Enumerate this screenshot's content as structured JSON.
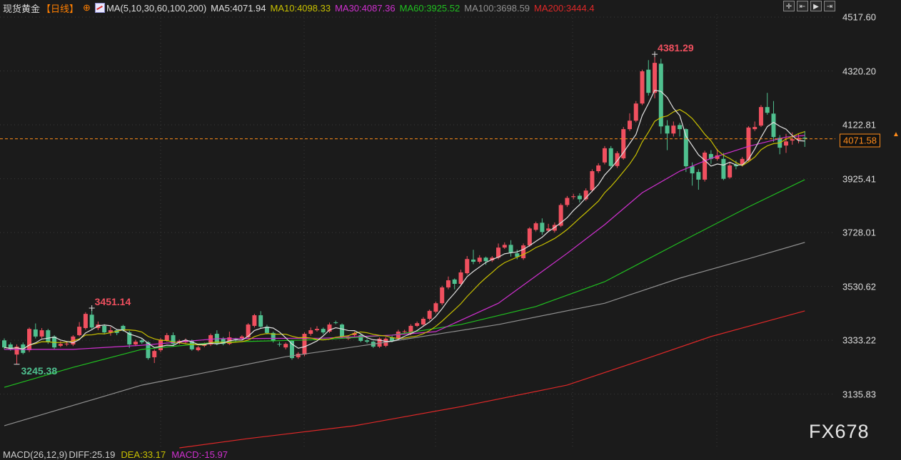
{
  "header": {
    "instrument": "现货黄金",
    "period": "【日线】",
    "ma_params": "MA(5,10,30,60,100,200)",
    "ma5": "MA5:4071.94",
    "ma10": "MA10:4098.33",
    "ma30": "MA30:4087.36",
    "ma60": "MA60:3925.52",
    "ma100": "MA100:3698.59",
    "ma200": "MA200:3444.4"
  },
  "macd": {
    "params": "MACD(26,12,9)",
    "diff": "DIFF:25.19",
    "dea": "DEA:33.17",
    "macd": "MACD:-15.97"
  },
  "current_price": "4071.58",
  "watermark": "FX678",
  "colors": {
    "up": "#f0505f",
    "down": "#4fc08f",
    "ma5": "#e0e0e0",
    "ma10": "#c8c000",
    "ma30": "#d030d0",
    "ma60": "#20c020",
    "ma100": "#909090",
    "ma200": "#e02828",
    "price_line": "#ff8c1a"
  },
  "chart_data": {
    "type": "candlestick",
    "ylim": [
      3010,
      4560
    ],
    "y_ticks": [
      "4517.60",
      "4320.20",
      "4122.81",
      "3925.41",
      "3728.01",
      "3530.62",
      "3333.22",
      "3135.83"
    ],
    "grid": true,
    "annotations": [
      {
        "text": "4381.29",
        "bar": 104,
        "value": 4381.29,
        "kind": "high"
      },
      {
        "text": "3451.14",
        "bar": 14,
        "value": 3451.14,
        "kind": "high"
      },
      {
        "text": "3245.38",
        "bar": 2,
        "value": 3245.38,
        "kind": "low"
      }
    ],
    "ohlc": [
      [
        3333,
        3340,
        3300,
        3307
      ],
      [
        3318,
        3325,
        3295,
        3300
      ],
      [
        3281,
        3318,
        3245.38,
        3310
      ],
      [
        3318,
        3325,
        3282,
        3287
      ],
      [
        3297,
        3380,
        3290,
        3375
      ],
      [
        3373,
        3395,
        3340,
        3347
      ],
      [
        3347,
        3378,
        3340,
        3370
      ],
      [
        3370,
        3375,
        3320,
        3326
      ],
      [
        3347,
        3352,
        3300,
        3307
      ],
      [
        3313,
        3330,
        3308,
        3320
      ],
      [
        3320,
        3328,
        3312,
        3321
      ],
      [
        3318,
        3352,
        3312,
        3347
      ],
      [
        3352,
        3400,
        3348,
        3383
      ],
      [
        3378,
        3436,
        3372,
        3430
      ],
      [
        3427,
        3451.14,
        3375,
        3380
      ],
      [
        3378,
        3402,
        3370,
        3391
      ],
      [
        3386,
        3392,
        3355,
        3362
      ],
      [
        3362,
        3382,
        3350,
        3370
      ],
      [
        3370,
        3375,
        3352,
        3360
      ],
      [
        3386,
        3390,
        3365,
        3370
      ],
      [
        3362,
        3368,
        3305,
        3318
      ],
      [
        3318,
        3335,
        3312,
        3328
      ],
      [
        3333,
        3338,
        3320,
        3326
      ],
      [
        3326,
        3330,
        3262,
        3268
      ],
      [
        3271,
        3300,
        3250,
        3294
      ],
      [
        3297,
        3342,
        3290,
        3336
      ],
      [
        3333,
        3360,
        3328,
        3352
      ],
      [
        3352,
        3362,
        3315,
        3320
      ],
      [
        3323,
        3336,
        3318,
        3331
      ],
      [
        3326,
        3340,
        3320,
        3333
      ],
      [
        3331,
        3336,
        3295,
        3300
      ],
      [
        3297,
        3312,
        3293,
        3307
      ],
      [
        3313,
        3325,
        3308,
        3320
      ],
      [
        3318,
        3358,
        3312,
        3352
      ],
      [
        3357,
        3370,
        3315,
        3320
      ],
      [
        3339,
        3345,
        3315,
        3320
      ],
      [
        3320,
        3365,
        3316,
        3344
      ],
      [
        3339,
        3342,
        3325,
        3338
      ],
      [
        3341,
        3352,
        3336,
        3347
      ],
      [
        3344,
        3396,
        3340,
        3391
      ],
      [
        3386,
        3430,
        3380,
        3425
      ],
      [
        3425,
        3440,
        3378,
        3383
      ],
      [
        3383,
        3390,
        3355,
        3360
      ],
      [
        3360,
        3365,
        3325,
        3331
      ],
      [
        3320,
        3328,
        3310,
        3318
      ],
      [
        3307,
        3325,
        3300,
        3320
      ],
      [
        3331,
        3335,
        3262,
        3268
      ],
      [
        3271,
        3290,
        3265,
        3284
      ],
      [
        3281,
        3362,
        3275,
        3357
      ],
      [
        3357,
        3380,
        3350,
        3370
      ],
      [
        3370,
        3385,
        3365,
        3375
      ],
      [
        3375,
        3380,
        3355,
        3362
      ],
      [
        3365,
        3398,
        3360,
        3391
      ],
      [
        3399,
        3405,
        3392,
        3398
      ],
      [
        3391,
        3395,
        3340,
        3347
      ],
      [
        3339,
        3352,
        3334,
        3347
      ],
      [
        3352,
        3365,
        3348,
        3360
      ],
      [
        3352,
        3358,
        3326,
        3331
      ],
      [
        3333,
        3338,
        3322,
        3328
      ],
      [
        3328,
        3332,
        3305,
        3310
      ],
      [
        3310,
        3344,
        3305,
        3339
      ],
      [
        3313,
        3345,
        3308,
        3339
      ],
      [
        3344,
        3350,
        3326,
        3331
      ],
      [
        3339,
        3372,
        3334,
        3365
      ],
      [
        3365,
        3372,
        3358,
        3366
      ],
      [
        3357,
        3392,
        3352,
        3386
      ],
      [
        3386,
        3402,
        3382,
        3396
      ],
      [
        3391,
        3418,
        3386,
        3412
      ],
      [
        3412,
        3446,
        3406,
        3441
      ],
      [
        3438,
        3475,
        3432,
        3469
      ],
      [
        3469,
        3533,
        3462,
        3527
      ],
      [
        3527,
        3567,
        3520,
        3553
      ],
      [
        3556,
        3560,
        3520,
        3540
      ],
      [
        3540,
        3592,
        3535,
        3582
      ],
      [
        3579,
        3642,
        3573,
        3631
      ],
      [
        3629,
        3665,
        3612,
        3621
      ],
      [
        3621,
        3645,
        3614,
        3636
      ],
      [
        3636,
        3640,
        3610,
        3623
      ],
      [
        3626,
        3642,
        3620,
        3636
      ],
      [
        3636,
        3688,
        3630,
        3673
      ],
      [
        3673,
        3692,
        3668,
        3683
      ],
      [
        3683,
        3700,
        3640,
        3655
      ],
      [
        3652,
        3665,
        3630,
        3639
      ],
      [
        3634,
        3688,
        3628,
        3681
      ],
      [
        3681,
        3748,
        3676,
        3743
      ],
      [
        3738,
        3768,
        3732,
        3762
      ],
      [
        3764,
        3780,
        3720,
        3730
      ],
      [
        3735,
        3760,
        3730,
        3743
      ],
      [
        3735,
        3765,
        3728,
        3756
      ],
      [
        3753,
        3835,
        3748,
        3829
      ],
      [
        3829,
        3862,
        3822,
        3855
      ],
      [
        3858,
        3870,
        3850,
        3861
      ],
      [
        3863,
        3872,
        3838,
        3850
      ],
      [
        3850,
        3890,
        3844,
        3882
      ],
      [
        3883,
        3960,
        3876,
        3953
      ],
      [
        3953,
        3982,
        3946,
        3974
      ],
      [
        3985,
        4045,
        3978,
        4037
      ],
      [
        4037,
        4045,
        3965,
        3972
      ],
      [
        3972,
        4026,
        3965,
        4019
      ],
      [
        4000,
        4115,
        3995,
        4107
      ],
      [
        4107,
        4165,
        4100,
        4138
      ],
      [
        4138,
        4210,
        4132,
        4201
      ],
      [
        4201,
        4325,
        4195,
        4319
      ],
      [
        4325,
        4360,
        4230,
        4240
      ],
      [
        4240,
        4381.29,
        4220,
        4350
      ],
      [
        4347,
        4365,
        4090,
        4117
      ],
      [
        4120,
        4140,
        4030,
        4091
      ],
      [
        4091,
        4135,
        4080,
        4120
      ],
      [
        4122,
        4130,
        4080,
        4107
      ],
      [
        4107,
        4110,
        3950,
        3971
      ],
      [
        3971,
        3985,
        3900,
        3945
      ],
      [
        3950,
        3960,
        3885,
        3922
      ],
      [
        3922,
        4028,
        3915,
        4021
      ],
      [
        4016,
        4030,
        3980,
        3998
      ],
      [
        3998,
        4035,
        3992,
        4011
      ],
      [
        3998,
        4020,
        3920,
        3925
      ],
      [
        3930,
        3985,
        3925,
        3974
      ],
      [
        3976,
        3992,
        3960,
        3971
      ],
      [
        3976,
        4005,
        3970,
        3998
      ],
      [
        3993,
        4118,
        3988,
        4113
      ],
      [
        4107,
        4135,
        4100,
        4115
      ],
      [
        4120,
        4195,
        4115,
        4188
      ],
      [
        4188,
        4240,
        4160,
        4167
      ],
      [
        4164,
        4210,
        4060,
        4078
      ],
      [
        4075,
        4085,
        4015,
        4039
      ],
      [
        4047,
        4090,
        4020,
        4062
      ],
      [
        4065,
        4095,
        4050,
        4070
      ],
      [
        4068,
        4090,
        4055,
        4075
      ],
      [
        4076,
        4100,
        4042,
        4071.58
      ]
    ],
    "moving_averages": {
      "ma30": [
        [
          0,
          3300
        ],
        [
          11,
          3300
        ],
        [
          22,
          3315
        ],
        [
          34,
          3339
        ],
        [
          51,
          3341
        ],
        [
          62,
          3352
        ],
        [
          69,
          3365
        ],
        [
          79,
          3469
        ],
        [
          90,
          3652
        ],
        [
          96,
          3757
        ],
        [
          102,
          3874
        ],
        [
          108,
          3953
        ],
        [
          113,
          4000
        ],
        [
          119,
          4044
        ],
        [
          125,
          4078
        ],
        [
          128,
          4084
        ]
      ],
      "ma60": [
        [
          0,
          3161
        ],
        [
          11,
          3234
        ],
        [
          22,
          3300
        ],
        [
          34,
          3326
        ],
        [
          51,
          3336
        ],
        [
          62,
          3352
        ],
        [
          73,
          3391
        ],
        [
          85,
          3457
        ],
        [
          96,
          3548
        ],
        [
          108,
          3692
        ],
        [
          119,
          3822
        ],
        [
          128,
          3922
        ]
      ],
      "ma100": [
        [
          0,
          3020
        ],
        [
          22,
          3169
        ],
        [
          45,
          3273
        ],
        [
          61,
          3326
        ],
        [
          79,
          3391
        ],
        [
          96,
          3469
        ],
        [
          108,
          3561
        ],
        [
          119,
          3632
        ],
        [
          128,
          3692
        ]
      ],
      "ma200": [
        [
          28,
          2939
        ],
        [
          39,
          2973
        ],
        [
          56,
          3020
        ],
        [
          73,
          3090
        ],
        [
          90,
          3169
        ],
        [
          102,
          3261
        ],
        [
          113,
          3347
        ],
        [
          128,
          3441
        ]
      ]
    }
  }
}
